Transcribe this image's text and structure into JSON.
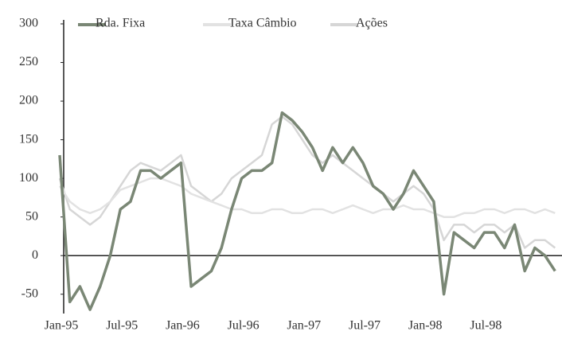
{
  "chart_data": {
    "type": "line",
    "categories": [
      "Jan-95",
      null,
      null,
      null,
      null,
      null,
      "Jul-95",
      null,
      null,
      null,
      null,
      null,
      "Jan-96",
      null,
      null,
      null,
      null,
      null,
      "Jul-96",
      null,
      null,
      null,
      null,
      null,
      "Jan-97",
      null,
      null,
      null,
      null,
      null,
      "Jul-97",
      null,
      null,
      null,
      null,
      null,
      "Jan-98",
      null,
      null,
      null,
      null,
      null,
      "Jul-98",
      null,
      null,
      null,
      null,
      null,
      null,
      null
    ],
    "series": [
      {
        "name": "Rda. Fixa",
        "color": "#7a8775",
        "values": [
          130,
          -60,
          -40,
          -70,
          -40,
          0,
          60,
          70,
          110,
          110,
          100,
          110,
          120,
          -40,
          -30,
          -20,
          10,
          60,
          100,
          110,
          110,
          120,
          185,
          175,
          160,
          140,
          110,
          140,
          120,
          140,
          120,
          90,
          80,
          60,
          80,
          110,
          90,
          70,
          -50,
          30,
          20,
          10,
          30,
          30,
          10,
          40,
          -20,
          10,
          0,
          -20
        ]
      },
      {
        "name": "Taxa Câmbio",
        "color": "#e2e2e2",
        "values": [
          90,
          70,
          60,
          55,
          60,
          70,
          85,
          90,
          95,
          100,
          100,
          95,
          90,
          80,
          75,
          70,
          65,
          60,
          60,
          55,
          55,
          60,
          60,
          55,
          55,
          60,
          60,
          55,
          60,
          65,
          60,
          55,
          60,
          60,
          65,
          60,
          60,
          55,
          50,
          50,
          55,
          55,
          60,
          60,
          55,
          60,
          60,
          55,
          60,
          55
        ]
      },
      {
        "name": "Ações",
        "color": "#d6d6d6",
        "values": [
          100,
          60,
          50,
          40,
          50,
          70,
          90,
          110,
          120,
          115,
          110,
          120,
          130,
          90,
          80,
          70,
          80,
          100,
          110,
          120,
          130,
          170,
          180,
          170,
          150,
          130,
          120,
          130,
          120,
          110,
          100,
          90,
          80,
          70,
          80,
          90,
          80,
          60,
          20,
          40,
          40,
          30,
          40,
          40,
          30,
          40,
          10,
          20,
          20,
          10
        ]
      }
    ],
    "ylim": [
      -75,
      300
    ],
    "yticks": [
      -50,
      0,
      50,
      100,
      150,
      200,
      250,
      300
    ],
    "legend": "top-left"
  }
}
